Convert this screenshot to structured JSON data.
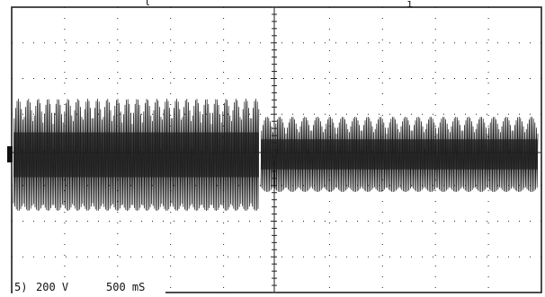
{
  "readout": {
    "channel": "5)",
    "volts": "200 V",
    "time": "500 mS"
  }
}
